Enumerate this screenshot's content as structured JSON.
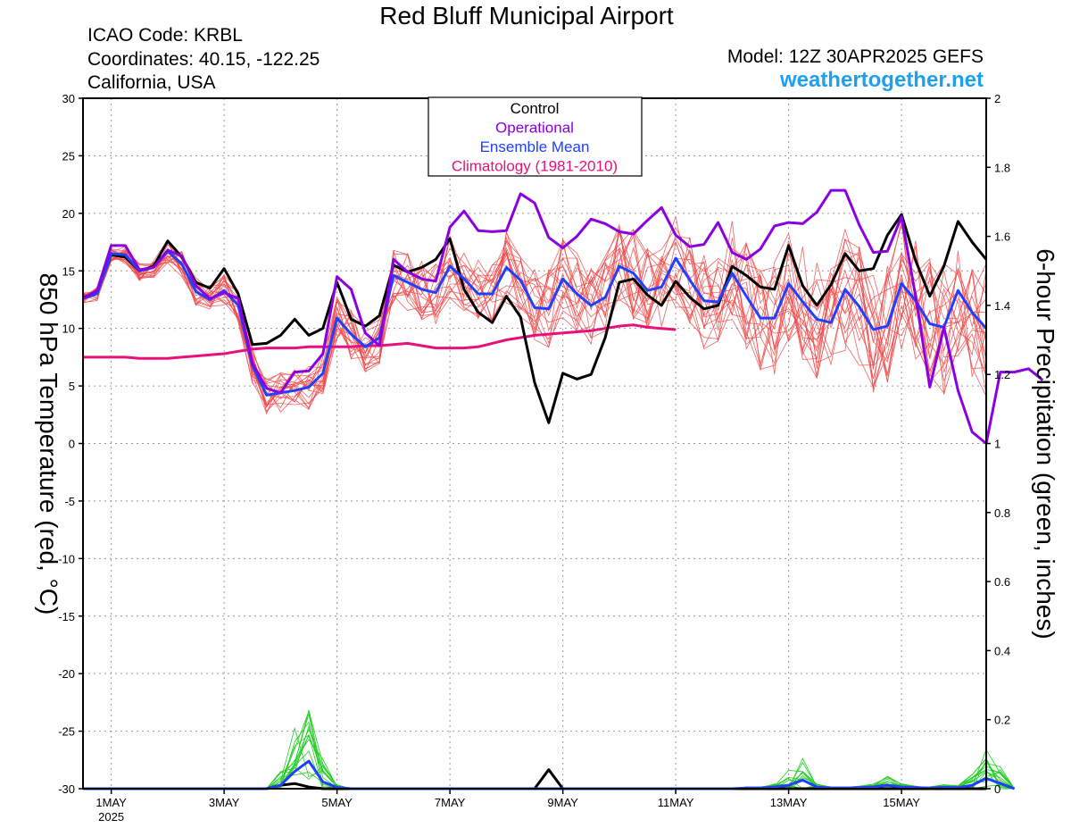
{
  "header": {
    "title": "Red Bluff Municipal Airport",
    "info_lines": [
      "ICAO Code: KRBL",
      "Coordinates: 40.15, -122.25",
      "California, USA"
    ],
    "model": "Model: 12Z 30APR2025 GEFS",
    "site": "weathertogether.net"
  },
  "chart_data": {
    "type": "line",
    "ylabel": "850 hPa Temperature (red, °C)",
    "y2label": "6-hour Precipitation (green, inches)",
    "ylim": [
      -30,
      30
    ],
    "y2lim": [
      0,
      2
    ],
    "yticks": [
      "30",
      "25",
      "20",
      "15",
      "10",
      "5",
      "0",
      "-5",
      "-10",
      "-15",
      "-20",
      "-25",
      "-30"
    ],
    "y2ticks": [
      "2",
      "1.8",
      "1.6",
      "1.4",
      "1.2",
      "1",
      "0.8",
      "0.6",
      "0.4",
      "0.2",
      "0"
    ],
    "x_range_hours": [
      0,
      384
    ],
    "x_step_hours": 6,
    "xticks": [
      {
        "label": "1MAY",
        "sub": "2025",
        "hour": 12
      },
      {
        "label": "3MAY",
        "hour": 60
      },
      {
        "label": "5MAY",
        "hour": 108
      },
      {
        "label": "7MAY",
        "hour": 156
      },
      {
        "label": "9MAY",
        "hour": 204
      },
      {
        "label": "11MAY",
        "hour": 252
      },
      {
        "label": "13MAY",
        "hour": 300
      },
      {
        "label": "15MAY",
        "hour": 348
      }
    ],
    "grid": true,
    "legend_position": "top-center",
    "legend": [
      {
        "name": "Control",
        "color": "#000000"
      },
      {
        "name": "Operational",
        "color": "#8a00e0"
      },
      {
        "name": "Ensemble Mean",
        "color": "#2040ff"
      },
      {
        "name": "Climatology (1981-2010)",
        "color": "#e8107a"
      }
    ],
    "series": [
      {
        "name": "Control",
        "color": "#000000",
        "axis": "temperature",
        "values": [
          12.7,
          13.1,
          16.4,
          16.2,
          15.0,
          15.4,
          17.6,
          16.2,
          14.0,
          13.5,
          15.2,
          13.0,
          8.6,
          8.7,
          9.4,
          10.8,
          9.4,
          10.0,
          14.0,
          10.8,
          10.2,
          11.1,
          15.5,
          14.9,
          15.3,
          16.0,
          17.8,
          13.4,
          11.4,
          10.5,
          12.8,
          11.0,
          5.3,
          1.8,
          6.1,
          5.6,
          6.0,
          9.2,
          14.0,
          14.3,
          12.9,
          12.0,
          14.1,
          12.7,
          11.7,
          12.0,
          15.4,
          14.6,
          13.6,
          13.4,
          17.2,
          13.7,
          12.0,
          13.8,
          16.5,
          15.0,
          15.2,
          18.1,
          19.9,
          15.9,
          12.8,
          15.4,
          19.3,
          17.5,
          16.0
        ]
      },
      {
        "name": "Operational",
        "color": "#8a00e0",
        "axis": "temperature",
        "values": [
          12.6,
          13.3,
          17.2,
          17.2,
          15.1,
          15.3,
          16.8,
          16.3,
          13.7,
          12.6,
          13.1,
          12.6,
          7.0,
          4.8,
          4.4,
          6.2,
          6.3,
          7.8,
          14.5,
          13.4,
          9.6,
          8.5,
          16.0,
          14.9,
          14.3,
          14.1,
          18.8,
          20.2,
          18.5,
          18.4,
          18.5,
          21.7,
          20.9,
          17.9,
          17.0,
          18.0,
          19.5,
          19.1,
          18.4,
          18.2,
          19.4,
          20.5,
          18.1,
          17.1,
          17.3,
          19.2,
          16.6,
          16.0,
          16.9,
          18.9,
          19.2,
          19.1,
          20.1,
          22.0,
          22.0,
          19.0,
          16.6,
          16.7,
          19.7,
          12.8,
          4.9,
          10.1,
          4.6,
          1.0,
          0.0,
          6.2,
          6.2,
          6.5,
          5.5
        ]
      },
      {
        "name": "Ensemble Mean",
        "color": "#2040ff",
        "axis": "temperature",
        "values": [
          12.6,
          13.0,
          16.5,
          16.4,
          15.0,
          15.3,
          16.7,
          15.6,
          13.2,
          12.5,
          13.3,
          12.0,
          6.8,
          4.2,
          4.4,
          4.6,
          4.9,
          6.1,
          10.9,
          9.5,
          8.4,
          9.2,
          14.6,
          14.0,
          13.4,
          13.1,
          15.4,
          14.3,
          13.0,
          13.0,
          15.3,
          14.2,
          11.8,
          11.7,
          14.3,
          13.0,
          12.0,
          12.7,
          15.4,
          14.8,
          13.3,
          13.6,
          16.1,
          14.2,
          12.4,
          12.3,
          14.8,
          12.8,
          10.9,
          10.9,
          13.9,
          12.3,
          10.8,
          10.5,
          13.4,
          11.9,
          9.9,
          10.2,
          13.9,
          12.4,
          10.4,
          10.1,
          13.3,
          11.4,
          10.0
        ]
      },
      {
        "name": "Climatology (1981-2010)",
        "color": "#e8107a",
        "axis": "temperature",
        "values": [
          7.5,
          7.5,
          7.5,
          7.5,
          7.4,
          7.4,
          7.4,
          7.5,
          7.6,
          7.7,
          7.8,
          8.0,
          8.2,
          8.3,
          8.3,
          8.3,
          8.4,
          8.4,
          8.4,
          8.4,
          8.5,
          8.5,
          8.6,
          8.7,
          8.5,
          8.3,
          8.3,
          8.3,
          8.4,
          8.7,
          9.0,
          9.2,
          9.4,
          9.5,
          9.6,
          9.7,
          9.8,
          10.0,
          10.2,
          10.3,
          10.1,
          10.0,
          9.9
        ]
      },
      {
        "name": "Control precipitation",
        "color": "#000000",
        "axis": "precipitation",
        "values": [
          0,
          0,
          0,
          0,
          0,
          0,
          0,
          0,
          0,
          0,
          0,
          0,
          0,
          0,
          0.01,
          0.015,
          0.005,
          0,
          0,
          0,
          0,
          0,
          0,
          0,
          0,
          0,
          0,
          0,
          0,
          0,
          0,
          0,
          0,
          0.055,
          0,
          0,
          0,
          0,
          0,
          0,
          0,
          0,
          0,
          0,
          0,
          0,
          0,
          0,
          0,
          0,
          0,
          0,
          0,
          0,
          0,
          0,
          0,
          0,
          0,
          0,
          0,
          0,
          0,
          0,
          0
        ]
      },
      {
        "name": "Ensemble Mean precipitation",
        "color": "#2040ff",
        "axis": "precipitation",
        "values": [
          0,
          0,
          0,
          0,
          0,
          0,
          0,
          0,
          0,
          0,
          0,
          0,
          0,
          0,
          0.01,
          0.05,
          0.08,
          0.02,
          0.004,
          0,
          0,
          0,
          0,
          0,
          0,
          0,
          0,
          0,
          0,
          0,
          0,
          0,
          0,
          0,
          0,
          0,
          0,
          0,
          0,
          0,
          0,
          0,
          0,
          0,
          0,
          0,
          0,
          0.002,
          0.002,
          0.005,
          0.01,
          0.025,
          0.005,
          0.002,
          0.002,
          0.003,
          0.005,
          0.01,
          0.005,
          0.003,
          0.002,
          0.004,
          0.003,
          0.01,
          0.03,
          0.015,
          0
        ]
      }
    ]
  }
}
